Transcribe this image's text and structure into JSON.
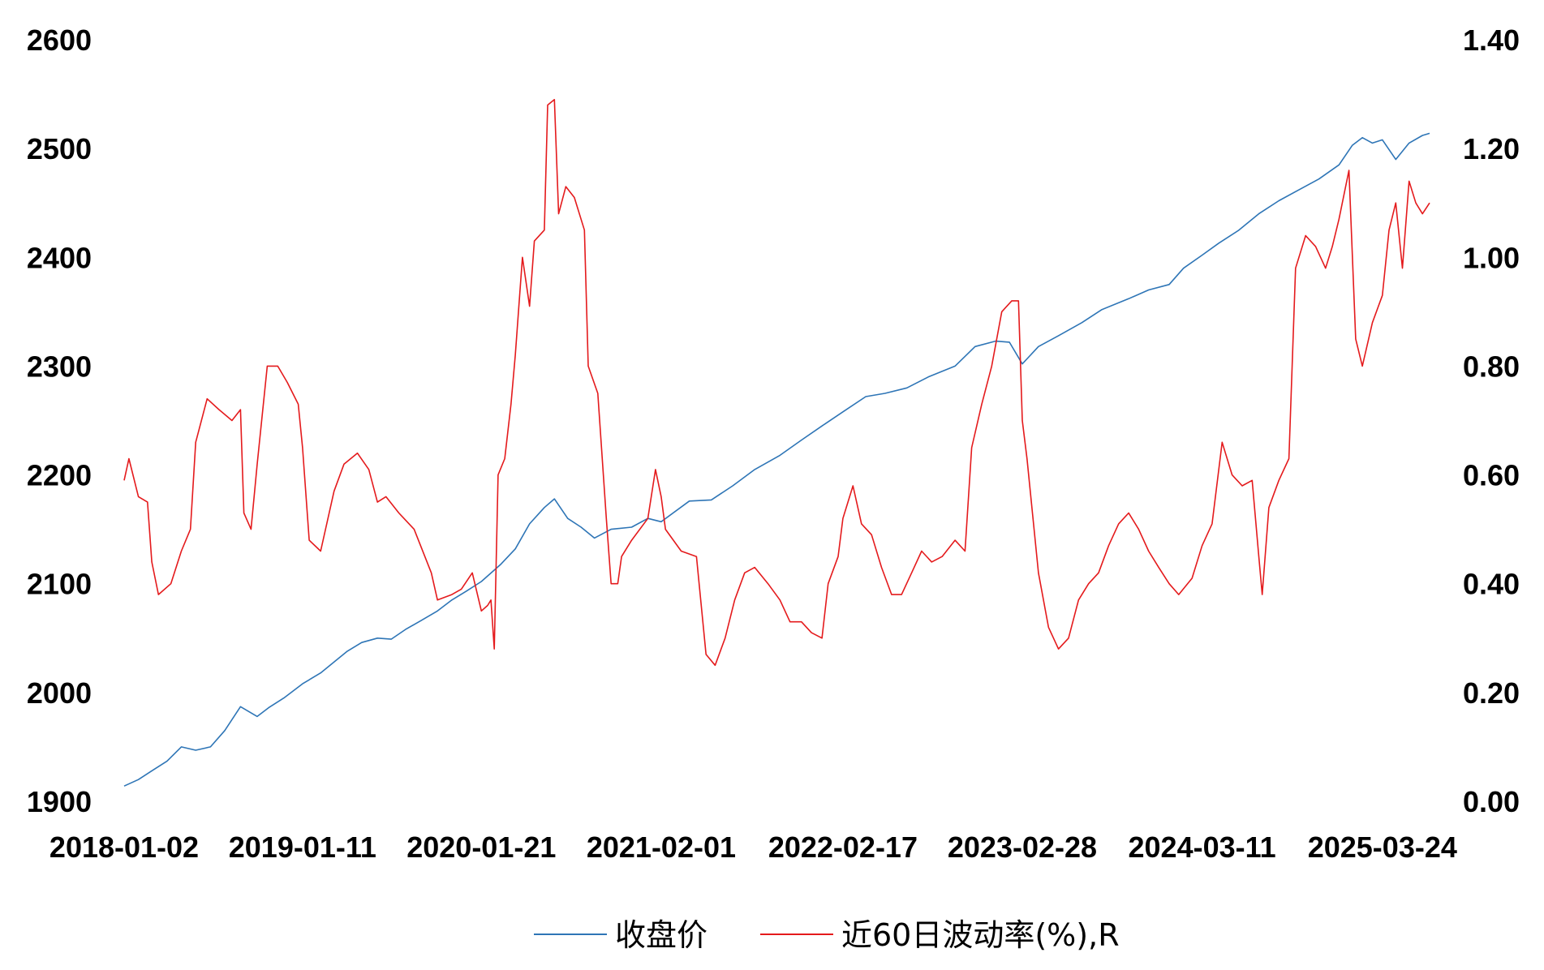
{
  "chart_data": {
    "type": "line",
    "title": "",
    "xlabel": "",
    "ylabel": "",
    "y2label": "",
    "x_tick_labels": [
      "2018-01-02",
      "2019-01-11",
      "2020-01-21",
      "2021-02-01",
      "2022-02-17",
      "2023-02-28",
      "2024-03-11",
      "2025-03-24"
    ],
    "y_left": {
      "ylim": [
        1900,
        2600
      ],
      "ticks": [
        1900,
        2000,
        2100,
        2200,
        2300,
        2400,
        2500,
        2600
      ],
      "tick_labels": [
        "1900",
        "2000",
        "2100",
        "2200",
        "2300",
        "2400",
        "2500",
        "2600"
      ]
    },
    "y_right": {
      "ylim": [
        0.0,
        1.4
      ],
      "ticks": [
        0.0,
        0.2,
        0.4,
        0.6,
        0.8,
        1.0,
        1.2,
        1.4
      ],
      "tick_labels": [
        "0.00",
        "0.20",
        "0.40",
        "0.60",
        "0.80",
        "1.00",
        "1.20",
        "1.40"
      ]
    },
    "grid": false,
    "legend_position": "bottom-center",
    "series": [
      {
        "name": "收盘价",
        "axis": "left",
        "color": "#2E75B6",
        "points": [
          [
            "2018-01-02",
            1914
          ],
          [
            "2018-02-01",
            1920
          ],
          [
            "2018-03-01",
            1928
          ],
          [
            "2018-04-02",
            1937
          ],
          [
            "2018-05-02",
            1950
          ],
          [
            "2018-06-01",
            1947
          ],
          [
            "2018-07-02",
            1950
          ],
          [
            "2018-08-01",
            1965
          ],
          [
            "2018-09-03",
            1987
          ],
          [
            "2018-10-08",
            1978
          ],
          [
            "2018-11-01",
            1986
          ],
          [
            "2018-12-03",
            1995
          ],
          [
            "2019-01-11",
            2008
          ],
          [
            "2019-02-18",
            2018
          ],
          [
            "2019-03-18",
            2028
          ],
          [
            "2019-04-15",
            2038
          ],
          [
            "2019-05-15",
            2046
          ],
          [
            "2019-06-17",
            2050
          ],
          [
            "2019-07-16",
            2049
          ],
          [
            "2019-08-15",
            2058
          ],
          [
            "2019-09-16",
            2066
          ],
          [
            "2019-10-21",
            2075
          ],
          [
            "2019-11-20",
            2085
          ],
          [
            "2019-12-20",
            2093
          ],
          [
            "2020-01-21",
            2102
          ],
          [
            "2020-03-02",
            2118
          ],
          [
            "2020-04-01",
            2132
          ],
          [
            "2020-05-01",
            2155
          ],
          [
            "2020-06-01",
            2170
          ],
          [
            "2020-06-22",
            2178
          ],
          [
            "2020-07-20",
            2160
          ],
          [
            "2020-08-17",
            2152
          ],
          [
            "2020-09-14",
            2142
          ],
          [
            "2020-10-19",
            2150
          ],
          [
            "2020-12-01",
            2152
          ],
          [
            "2021-01-04",
            2160
          ],
          [
            "2021-02-01",
            2157
          ],
          [
            "2021-04-01",
            2176
          ],
          [
            "2021-05-17",
            2177
          ],
          [
            "2021-07-01",
            2190
          ],
          [
            "2021-08-16",
            2205
          ],
          [
            "2021-10-08",
            2218
          ],
          [
            "2021-11-22",
            2232
          ],
          [
            "2022-01-04",
            2245
          ],
          [
            "2022-02-17",
            2258
          ],
          [
            "2022-04-06",
            2272
          ],
          [
            "2022-05-16",
            2275
          ],
          [
            "2022-07-01",
            2280
          ],
          [
            "2022-08-15",
            2290
          ],
          [
            "2022-10-10",
            2300
          ],
          [
            "2022-11-21",
            2318
          ],
          [
            "2023-01-03",
            2323
          ],
          [
            "2023-02-01",
            2322
          ],
          [
            "2023-02-28",
            2302
          ],
          [
            "2023-04-03",
            2318
          ],
          [
            "2023-05-15",
            2328
          ],
          [
            "2023-07-03",
            2340
          ],
          [
            "2023-08-14",
            2352
          ],
          [
            "2023-10-09",
            2362
          ],
          [
            "2023-11-20",
            2370
          ],
          [
            "2024-01-02",
            2375
          ],
          [
            "2024-02-01",
            2390
          ],
          [
            "2024-03-11",
            2402
          ],
          [
            "2024-04-15",
            2413
          ],
          [
            "2024-05-27",
            2425
          ],
          [
            "2024-07-08",
            2440
          ],
          [
            "2024-08-19",
            2452
          ],
          [
            "2024-09-30",
            2462
          ],
          [
            "2024-11-11",
            2472
          ],
          [
            "2024-12-23",
            2485
          ],
          [
            "2025-01-20",
            2503
          ],
          [
            "2025-02-10",
            2510
          ],
          [
            "2025-03-03",
            2505
          ],
          [
            "2025-03-24",
            2508
          ],
          [
            "2025-04-21",
            2490
          ],
          [
            "2025-05-19",
            2505
          ],
          [
            "2025-06-16",
            2512
          ],
          [
            "2025-07-01",
            2514
          ]
        ]
      },
      {
        "name": "近60日波动率(%),R",
        "axis": "right",
        "color": "#E41A1C",
        "points": [
          [
            "2018-01-02",
            0.59
          ],
          [
            "2018-01-12",
            0.63
          ],
          [
            "2018-02-01",
            0.56
          ],
          [
            "2018-02-20",
            0.55
          ],
          [
            "2018-03-01",
            0.44
          ],
          [
            "2018-03-15",
            0.38
          ],
          [
            "2018-04-10",
            0.4
          ],
          [
            "2018-05-02",
            0.46
          ],
          [
            "2018-05-21",
            0.5
          ],
          [
            "2018-06-01",
            0.66
          ],
          [
            "2018-06-25",
            0.74
          ],
          [
            "2018-07-20",
            0.72
          ],
          [
            "2018-08-16",
            0.7
          ],
          [
            "2018-09-03",
            0.72
          ],
          [
            "2018-09-10",
            0.53
          ],
          [
            "2018-09-25",
            0.5
          ],
          [
            "2018-10-08",
            0.62
          ],
          [
            "2018-10-29",
            0.8
          ],
          [
            "2018-11-20",
            0.8
          ],
          [
            "2018-12-10",
            0.77
          ],
          [
            "2019-01-02",
            0.73
          ],
          [
            "2019-01-11",
            0.65
          ],
          [
            "2019-01-25",
            0.48
          ],
          [
            "2019-02-18",
            0.46
          ],
          [
            "2019-03-18",
            0.57
          ],
          [
            "2019-04-08",
            0.62
          ],
          [
            "2019-05-06",
            0.64
          ],
          [
            "2019-05-30",
            0.61
          ],
          [
            "2019-06-17",
            0.55
          ],
          [
            "2019-07-05",
            0.56
          ],
          [
            "2019-08-01",
            0.53
          ],
          [
            "2019-09-02",
            0.5
          ],
          [
            "2019-10-08",
            0.42
          ],
          [
            "2019-10-21",
            0.37
          ],
          [
            "2019-11-20",
            0.38
          ],
          [
            "2019-12-10",
            0.39
          ],
          [
            "2020-01-02",
            0.42
          ],
          [
            "2020-01-21",
            0.35
          ],
          [
            "2020-02-03",
            0.36
          ],
          [
            "2020-02-10",
            0.37
          ],
          [
            "2020-02-17",
            0.28
          ],
          [
            "2020-02-25",
            0.6
          ],
          [
            "2020-03-10",
            0.63
          ],
          [
            "2020-03-23",
            0.73
          ],
          [
            "2020-04-01",
            0.82
          ],
          [
            "2020-04-16",
            1.0
          ],
          [
            "2020-05-01",
            0.91
          ],
          [
            "2020-05-11",
            1.03
          ],
          [
            "2020-06-01",
            1.05
          ],
          [
            "2020-06-08",
            1.28
          ],
          [
            "2020-06-22",
            1.29
          ],
          [
            "2020-07-01",
            1.08
          ],
          [
            "2020-07-16",
            1.13
          ],
          [
            "2020-08-03",
            1.11
          ],
          [
            "2020-08-24",
            1.05
          ],
          [
            "2020-09-01",
            0.8
          ],
          [
            "2020-09-21",
            0.75
          ],
          [
            "2020-10-09",
            0.52
          ],
          [
            "2020-10-19",
            0.4
          ],
          [
            "2020-11-02",
            0.4
          ],
          [
            "2020-11-10",
            0.45
          ],
          [
            "2020-12-01",
            0.48
          ],
          [
            "2021-01-04",
            0.52
          ],
          [
            "2021-01-20",
            0.61
          ],
          [
            "2021-02-01",
            0.56
          ],
          [
            "2021-02-10",
            0.5
          ],
          [
            "2021-03-15",
            0.46
          ],
          [
            "2021-04-16",
            0.45
          ],
          [
            "2021-05-06",
            0.27
          ],
          [
            "2021-05-25",
            0.25
          ],
          [
            "2021-06-15",
            0.3
          ],
          [
            "2021-07-05",
            0.37
          ],
          [
            "2021-07-26",
            0.42
          ],
          [
            "2021-08-16",
            0.43
          ],
          [
            "2021-09-13",
            0.4
          ],
          [
            "2021-10-08",
            0.37
          ],
          [
            "2021-10-29",
            0.33
          ],
          [
            "2021-11-22",
            0.33
          ],
          [
            "2021-12-13",
            0.31
          ],
          [
            "2022-01-04",
            0.3
          ],
          [
            "2022-01-17",
            0.4
          ],
          [
            "2022-02-07",
            0.45
          ],
          [
            "2022-02-17",
            0.52
          ],
          [
            "2022-03-10",
            0.58
          ],
          [
            "2022-03-28",
            0.51
          ],
          [
            "2022-04-18",
            0.49
          ],
          [
            "2022-05-09",
            0.43
          ],
          [
            "2022-05-30",
            0.38
          ],
          [
            "2022-06-20",
            0.38
          ],
          [
            "2022-07-11",
            0.42
          ],
          [
            "2022-08-01",
            0.46
          ],
          [
            "2022-08-22",
            0.44
          ],
          [
            "2022-09-13",
            0.45
          ],
          [
            "2022-10-10",
            0.48
          ],
          [
            "2022-10-31",
            0.46
          ],
          [
            "2022-11-14",
            0.65
          ],
          [
            "2022-12-05",
            0.73
          ],
          [
            "2022-12-26",
            0.8
          ],
          [
            "2023-01-16",
            0.9
          ],
          [
            "2023-02-06",
            0.92
          ],
          [
            "2023-02-20",
            0.92
          ],
          [
            "2023-02-28",
            0.7
          ],
          [
            "2023-03-10",
            0.63
          ],
          [
            "2023-04-03",
            0.42
          ],
          [
            "2023-04-24",
            0.32
          ],
          [
            "2023-05-15",
            0.28
          ],
          [
            "2023-06-05",
            0.3
          ],
          [
            "2023-06-26",
            0.37
          ],
          [
            "2023-07-17",
            0.4
          ],
          [
            "2023-08-07",
            0.42
          ],
          [
            "2023-08-28",
            0.47
          ],
          [
            "2023-09-18",
            0.51
          ],
          [
            "2023-10-09",
            0.53
          ],
          [
            "2023-10-30",
            0.5
          ],
          [
            "2023-11-20",
            0.46
          ],
          [
            "2023-12-11",
            0.43
          ],
          [
            "2024-01-02",
            0.4
          ],
          [
            "2024-01-22",
            0.38
          ],
          [
            "2024-02-19",
            0.41
          ],
          [
            "2024-03-11",
            0.47
          ],
          [
            "2024-04-01",
            0.51
          ],
          [
            "2024-04-22",
            0.66
          ],
          [
            "2024-05-13",
            0.6
          ],
          [
            "2024-06-03",
            0.58
          ],
          [
            "2024-06-24",
            0.59
          ],
          [
            "2024-07-08",
            0.45
          ],
          [
            "2024-07-15",
            0.38
          ],
          [
            "2024-07-29",
            0.54
          ],
          [
            "2024-08-19",
            0.59
          ],
          [
            "2024-09-09",
            0.63
          ],
          [
            "2024-09-23",
            0.98
          ],
          [
            "2024-10-14",
            1.04
          ],
          [
            "2024-11-04",
            1.02
          ],
          [
            "2024-11-25",
            0.98
          ],
          [
            "2024-12-09",
            1.02
          ],
          [
            "2024-12-23",
            1.07
          ],
          [
            "2025-01-13",
            1.16
          ],
          [
            "2025-01-27",
            0.85
          ],
          [
            "2025-02-10",
            0.8
          ],
          [
            "2025-03-03",
            0.88
          ],
          [
            "2025-03-24",
            0.93
          ],
          [
            "2025-04-07",
            1.05
          ],
          [
            "2025-04-21",
            1.1
          ],
          [
            "2025-05-05",
            0.98
          ],
          [
            "2025-05-19",
            1.14
          ],
          [
            "2025-06-02",
            1.1
          ],
          [
            "2025-06-16",
            1.08
          ],
          [
            "2025-07-01",
            1.1
          ]
        ]
      }
    ]
  }
}
